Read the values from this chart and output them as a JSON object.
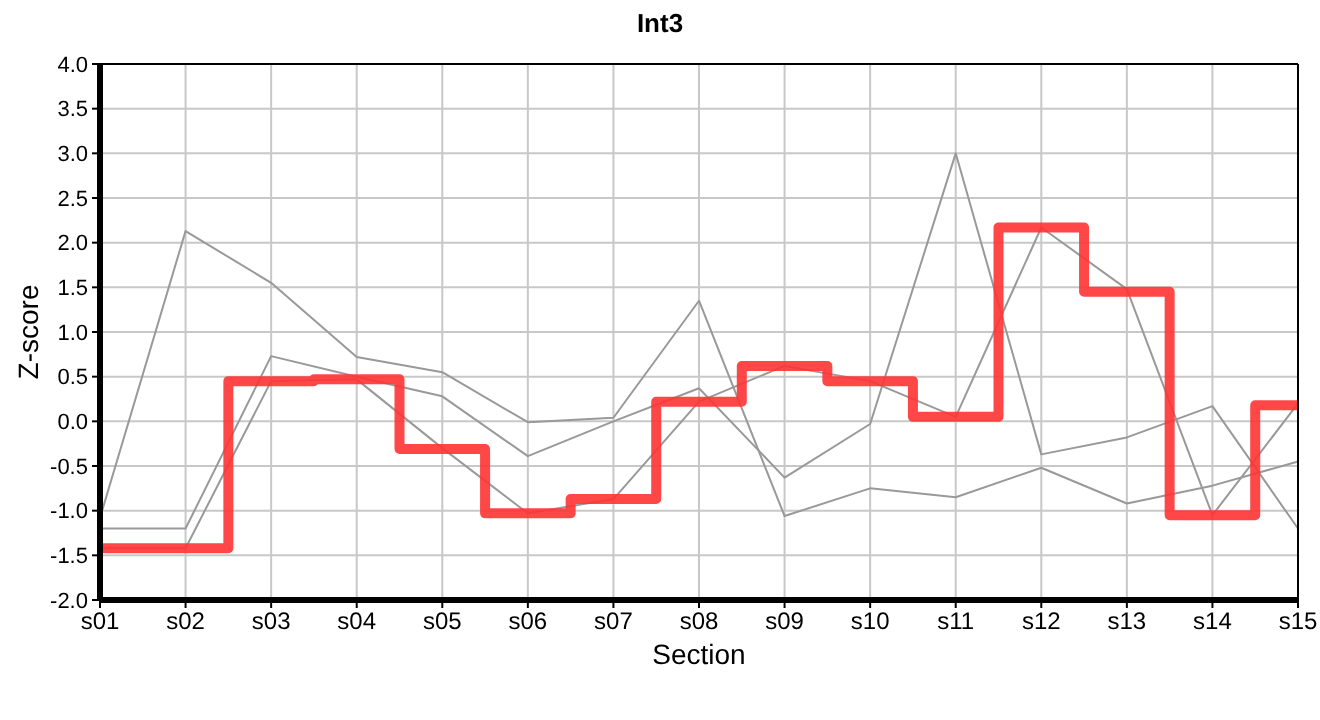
{
  "chart_data": {
    "type": "line",
    "title": "Int3",
    "xlabel": "Section",
    "ylabel": "Z-score",
    "categories": [
      "s01",
      "s02",
      "s03",
      "s04",
      "s05",
      "s06",
      "s07",
      "s08",
      "s09",
      "s10",
      "s11",
      "s12",
      "s13",
      "s14",
      "s15"
    ],
    "series": [
      {
        "color": "#999999",
        "values": [
          -1.08,
          2.13,
          1.55,
          0.72,
          0.55,
          -0.01,
          0.04,
          1.35,
          -1.06,
          -0.75,
          -0.85,
          -0.52,
          -0.92,
          -0.72,
          -0.45
        ]
      },
      {
        "color": "#999999",
        "values": [
          -1.2,
          -1.2,
          0.73,
          0.5,
          0.28,
          -0.39,
          0.0,
          0.37,
          -0.63,
          -0.03,
          3.0,
          -0.37,
          -0.18,
          0.17,
          -1.2
        ]
      },
      {
        "color": "#999999",
        "values": [
          -1.42,
          -1.42,
          0.45,
          0.47,
          -0.3,
          -1.03,
          -0.87,
          0.22,
          0.62,
          0.45,
          0.05,
          2.17,
          1.48,
          -1.05,
          0.2
        ]
      },
      {
        "type": "step",
        "color": "#ff3333",
        "values": [
          -1.42,
          -1.42,
          0.45,
          0.47,
          -0.31,
          -1.03,
          -0.87,
          0.22,
          0.62,
          0.45,
          0.05,
          2.17,
          1.45,
          -1.05,
          0.18
        ]
      }
    ],
    "ylim": [
      -2,
      4
    ],
    "yticks": [
      {
        "value": -2,
        "label": "-2.0"
      },
      {
        "value": -1.5,
        "label": "-1.5"
      },
      {
        "value": -1,
        "label": "-1.0"
      },
      {
        "value": -0.5,
        "label": "-0.5"
      },
      {
        "value": 0,
        "label": "0.0"
      },
      {
        "value": 0.5,
        "label": "0.5"
      },
      {
        "value": 1,
        "label": "1.0"
      },
      {
        "value": 1.5,
        "label": "1.5"
      },
      {
        "value": 2,
        "label": "2.0"
      },
      {
        "value": 2.5,
        "label": "2.5"
      },
      {
        "value": 3,
        "label": "3.0"
      },
      {
        "value": 3.5,
        "label": "3.5"
      },
      {
        "value": 4,
        "label": "4.0"
      }
    ],
    "grid": true,
    "marker": "none"
  }
}
